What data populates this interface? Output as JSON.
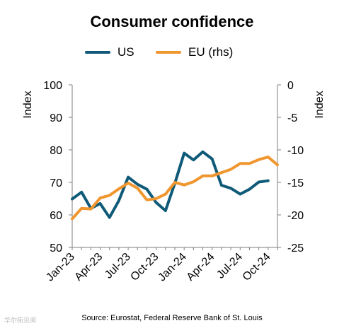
{
  "title": "Consumer confidence",
  "legend": [
    {
      "label": "US",
      "color": "#0e5a78"
    },
    {
      "label": "EU (rhs)",
      "color": "#f0962e"
    }
  ],
  "source": "Source: Eurostat, Federal Reserve Bank of St. Louis",
  "watermark": "华尔街见闻",
  "chart_data": {
    "type": "line",
    "title": "Consumer confidence",
    "x": [
      "Jan-23",
      "Feb-23",
      "Mar-23",
      "Apr-23",
      "May-23",
      "Jun-23",
      "Jul-23",
      "Aug-23",
      "Sep-23",
      "Oct-23",
      "Nov-23",
      "Dec-23",
      "Jan-24",
      "Feb-24",
      "Mar-24",
      "Apr-24",
      "May-24",
      "Jun-24",
      "Jul-24",
      "Aug-24",
      "Sep-24",
      "Oct-24",
      "Nov-24"
    ],
    "x_tick_labels": [
      "Jan-23",
      "Apr-23",
      "Jul-23",
      "Oct-23",
      "Jan-24",
      "Apr-24",
      "Jul-24",
      "Oct-24"
    ],
    "ylabel": "Index",
    "y2label": "Index",
    "ylim": [
      50,
      100
    ],
    "y_ticks": [
      50,
      60,
      70,
      80,
      90,
      100
    ],
    "y2lim": [
      -25,
      0
    ],
    "y2_ticks": [
      -25,
      -20,
      -15,
      -10,
      -5,
      0
    ],
    "grid": false,
    "legend_position": "top-center",
    "series": [
      {
        "name": "US",
        "axis": "left",
        "color": "#0e5a78",
        "values": [
          64.9,
          67.0,
          62.0,
          63.5,
          59.2,
          64.4,
          71.6,
          69.4,
          67.9,
          63.8,
          61.3,
          69.7,
          79.0,
          76.9,
          79.4,
          77.2,
          69.1,
          68.2,
          66.4,
          67.9,
          70.1,
          70.5,
          null
        ]
      },
      {
        "name": "EU (rhs)",
        "axis": "right",
        "color": "#f0962e",
        "values": [
          -20.6,
          -19.0,
          -19.1,
          -17.4,
          -17.0,
          -16.0,
          -15.1,
          -15.9,
          -17.7,
          -17.5,
          -16.8,
          -15.0,
          -15.4,
          -14.9,
          -14.0,
          -14.0,
          -13.5,
          -13.0,
          -12.1,
          -12.1,
          -11.5,
          -11.1,
          -12.3
        ]
      }
    ]
  }
}
